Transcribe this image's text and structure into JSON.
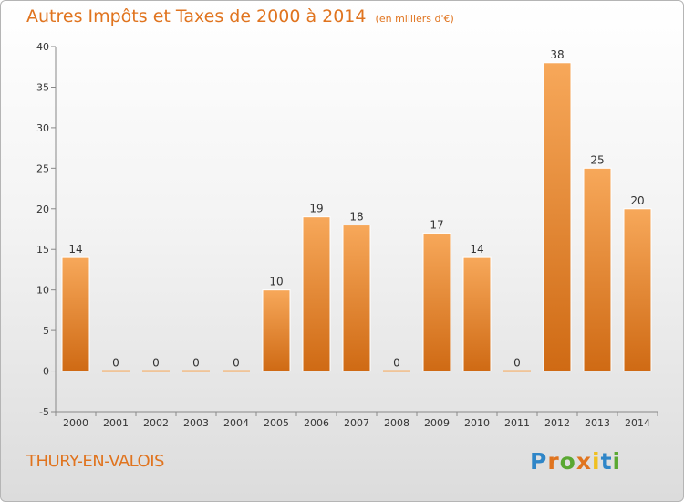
{
  "chart_data": {
    "type": "bar",
    "title": "Autres Impôts et Taxes de 2000 à 2014",
    "subtitle": "(en milliers d'€)",
    "categories": [
      "2000",
      "2001",
      "2002",
      "2003",
      "2004",
      "2005",
      "2006",
      "2007",
      "2008",
      "2009",
      "2010",
      "2011",
      "2012",
      "2013",
      "2014"
    ],
    "values": [
      14,
      0,
      0,
      0,
      0,
      10,
      19,
      18,
      0,
      17,
      14,
      0,
      38,
      25,
      20
    ],
    "value_labels": [
      "14",
      "0",
      "0",
      "0",
      "0",
      "10",
      "19",
      "18",
      "0",
      "17",
      "14",
      "0",
      "38",
      "25",
      "20"
    ],
    "ylim": [
      -5,
      40
    ],
    "yticks": [
      "-5",
      "0",
      "5",
      "10",
      "15",
      "20",
      "25",
      "30",
      "35",
      "40"
    ],
    "xlabel": "",
    "ylabel": "",
    "grid": false,
    "colors": {
      "bar_light": "#f7a85a",
      "bar_dark": "#cf6a14",
      "accent": "#e0741f"
    }
  },
  "commune": "THURY-EN-VALOIS",
  "logo": {
    "text": "Proxiti",
    "letters": [
      "P",
      "r",
      "o",
      "x",
      "i",
      "t",
      "i"
    ],
    "colors": [
      "#2f86c8",
      "#e0741f",
      "#5aa832",
      "#e0741f",
      "#f0c020",
      "#2f86c8",
      "#5aa832"
    ]
  }
}
